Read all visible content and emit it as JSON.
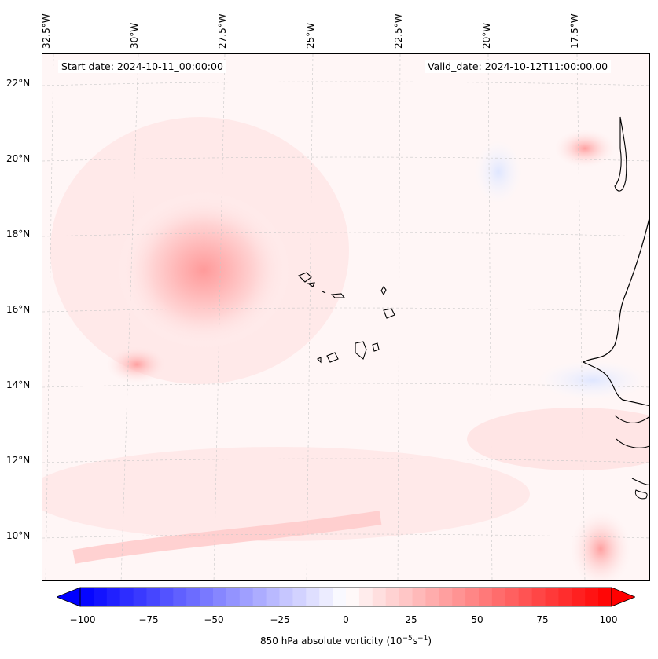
{
  "map": {
    "start_date": "Start date: 2024-10-11_00:00:00",
    "valid_date": "Valid_date: 2024-10-12T11:00:00.00",
    "longitude_labels": [
      "32.5°W",
      "30°W",
      "27.5°W",
      "25°W",
      "22.5°W",
      "20°W",
      "17.5°W"
    ],
    "latitude_labels": [
      "22°N",
      "20°N",
      "18°N",
      "16°N",
      "14°N",
      "12°N",
      "10°N"
    ]
  },
  "colorbar": {
    "label": "850 hPa absolute vorticity (10",
    "label_exp1": "−5",
    "label_mid": "s",
    "label_exp2": "−1",
    "label_end": ")",
    "ticks": [
      "−100",
      "−75",
      "−50",
      "−25",
      "0",
      "25",
      "50",
      "75",
      "100"
    ],
    "range": [
      -100,
      100
    ],
    "low_color": "#0000ff",
    "mid_color": "#ffffff",
    "high_color": "#ff0000"
  }
}
